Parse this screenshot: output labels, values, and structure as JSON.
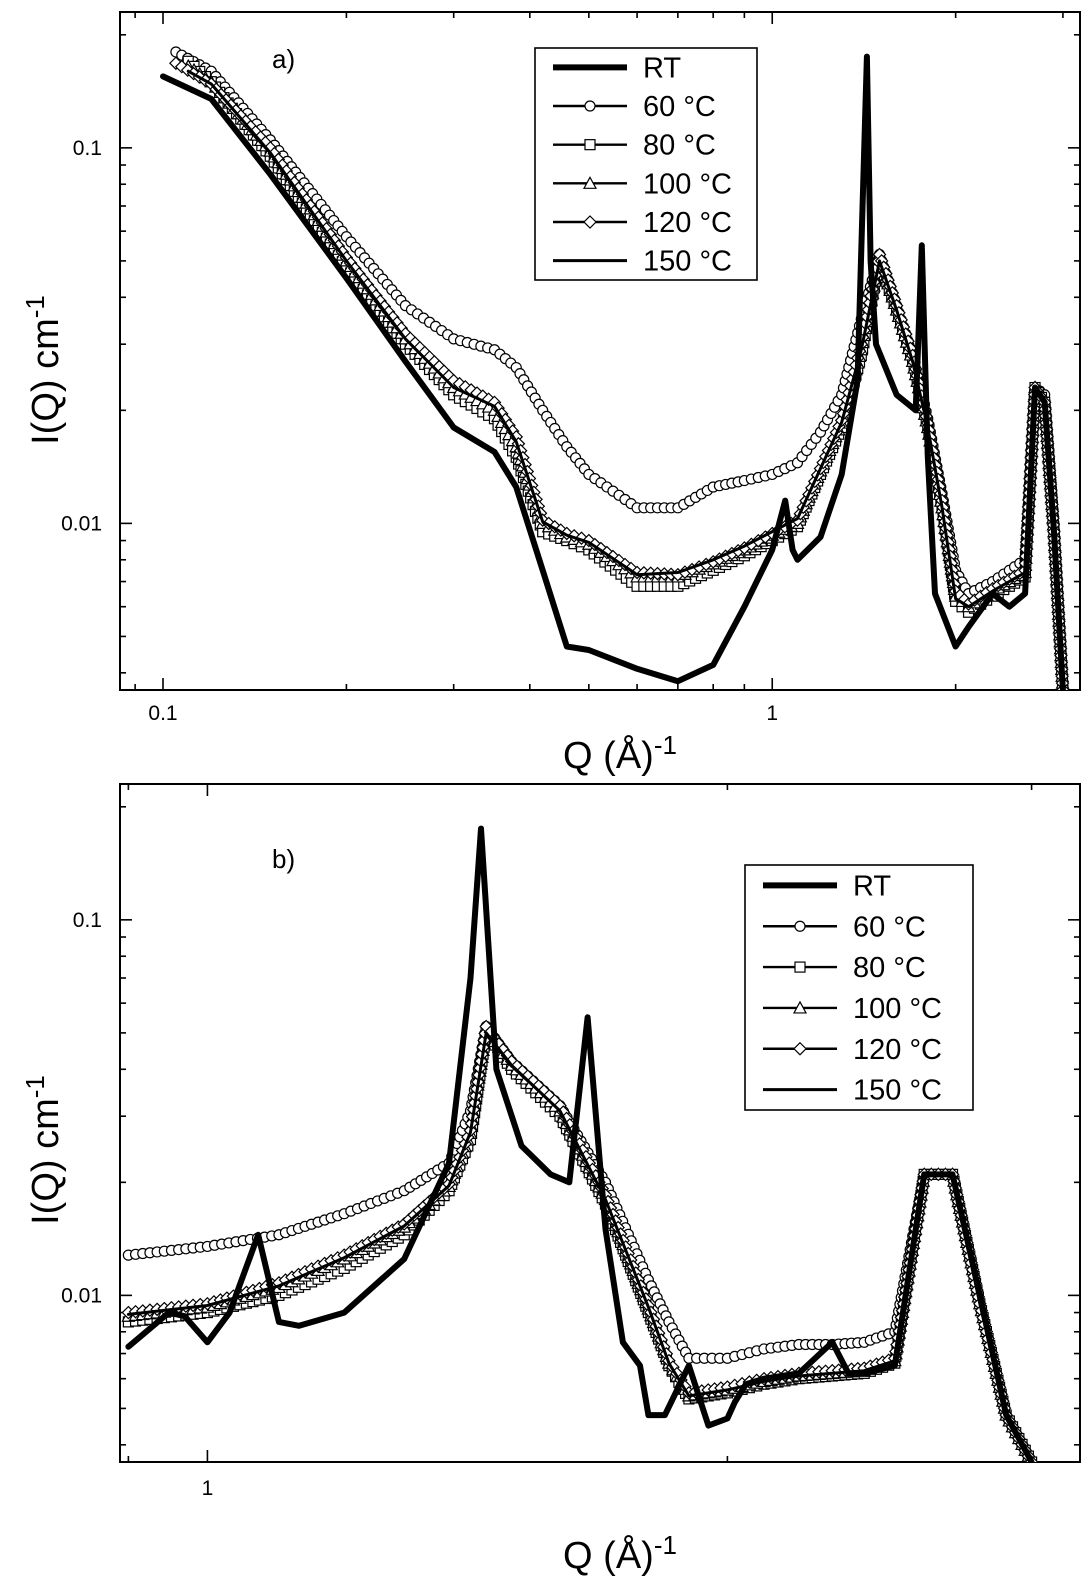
{
  "chart_data": [
    {
      "type": "line",
      "panel_label": "a)",
      "xlabel": "Q (Å)",
      "xlabel_sup": "-1",
      "ylabel": "I(Q) cm",
      "ylabel_sup": "-1",
      "xscale": "log",
      "yscale": "log",
      "xlim": [
        0.085,
        3.2
      ],
      "ylim": [
        0.0036,
        0.23
      ],
      "x_ticks": [
        {
          "value": 0.1,
          "label": "0.1"
        },
        {
          "value": 1,
          "label": "1"
        }
      ],
      "y_ticks": [
        {
          "value": 0.01,
          "label": "0.01"
        },
        {
          "value": 0.1,
          "label": "0.1"
        }
      ],
      "grid": false,
      "legend_position": "top-center",
      "legend": [
        "RT",
        "60 °C",
        "80 °C",
        "100 °C",
        "120 °C",
        "150 °C"
      ],
      "series": [
        {
          "name": "RT",
          "marker": "none",
          "x": [
            0.1,
            0.12,
            0.15,
            0.2,
            0.25,
            0.3,
            0.35,
            0.38,
            0.42,
            0.46,
            0.5,
            0.6,
            0.7,
            0.8,
            0.9,
            1.0,
            1.05,
            1.08,
            1.1,
            1.2,
            1.3,
            1.38,
            1.43,
            1.45,
            1.48,
            1.52,
            1.6,
            1.72,
            1.76,
            1.8,
            1.85,
            2.0,
            2.1,
            2.3,
            2.45,
            2.6,
            2.7,
            2.8,
            2.9,
            3.0
          ],
          "y": [
            0.155,
            0.135,
            0.085,
            0.045,
            0.027,
            0.018,
            0.0155,
            0.0125,
            0.0075,
            0.0047,
            0.0046,
            0.0041,
            0.0038,
            0.0042,
            0.006,
            0.0085,
            0.0115,
            0.0085,
            0.008,
            0.0092,
            0.0135,
            0.024,
            0.175,
            0.05,
            0.03,
            0.027,
            0.022,
            0.02,
            0.055,
            0.015,
            0.0065,
            0.0047,
            0.0053,
            0.0065,
            0.006,
            0.0065,
            0.023,
            0.021,
            0.0095,
            0.0036
          ]
        },
        {
          "name": "60 °C",
          "marker": "circle",
          "x": [
            0.105,
            0.12,
            0.15,
            0.2,
            0.25,
            0.3,
            0.35,
            0.38,
            0.42,
            0.46,
            0.5,
            0.6,
            0.7,
            0.8,
            0.9,
            1.0,
            1.1,
            1.2,
            1.3,
            1.4,
            1.5,
            1.6,
            1.7,
            1.8,
            1.9,
            2.0,
            2.1,
            2.3,
            2.45,
            2.6,
            2.7,
            2.8,
            2.9,
            3.0
          ],
          "y": [
            0.18,
            0.16,
            0.105,
            0.058,
            0.038,
            0.031,
            0.029,
            0.026,
            0.02,
            0.016,
            0.0135,
            0.011,
            0.011,
            0.0125,
            0.013,
            0.0135,
            0.0145,
            0.0175,
            0.022,
            0.035,
            0.052,
            0.038,
            0.028,
            0.019,
            0.012,
            0.0075,
            0.0065,
            0.007,
            0.0075,
            0.008,
            0.023,
            0.022,
            0.01,
            0.0036
          ]
        },
        {
          "name": "80 °C",
          "marker": "square",
          "x": [
            0.11,
            0.12,
            0.15,
            0.2,
            0.25,
            0.3,
            0.35,
            0.38,
            0.42,
            0.46,
            0.5,
            0.6,
            0.7,
            0.8,
            0.9,
            1.0,
            1.1,
            1.2,
            1.3,
            1.4,
            1.5,
            1.6,
            1.7,
            1.8,
            1.9,
            2.0,
            2.1,
            2.3,
            2.45,
            2.6,
            2.7,
            2.8,
            2.9,
            3.0
          ],
          "y": [
            0.17,
            0.15,
            0.095,
            0.048,
            0.03,
            0.022,
            0.019,
            0.015,
            0.0095,
            0.009,
            0.0085,
            0.0068,
            0.0068,
            0.0075,
            0.0082,
            0.009,
            0.0098,
            0.0135,
            0.018,
            0.028,
            0.05,
            0.037,
            0.027,
            0.018,
            0.011,
            0.0062,
            0.0058,
            0.0064,
            0.0068,
            0.0072,
            0.023,
            0.021,
            0.0095,
            0.0036
          ]
        },
        {
          "name": "100 °C",
          "marker": "triangle",
          "x": [
            0.11,
            0.12,
            0.15,
            0.2,
            0.25,
            0.3,
            0.35,
            0.38,
            0.42,
            0.46,
            0.5,
            0.6,
            0.7,
            0.8,
            0.9,
            1.0,
            1.1,
            1.2,
            1.3,
            1.4,
            1.5,
            1.6,
            1.7,
            1.8,
            1.9,
            2.0,
            2.1,
            2.3,
            2.45,
            2.6,
            2.7,
            2.8,
            2.9,
            3.0
          ],
          "y": [
            0.165,
            0.15,
            0.098,
            0.05,
            0.031,
            0.023,
            0.02,
            0.016,
            0.01,
            0.0092,
            0.0088,
            0.0072,
            0.0072,
            0.0078,
            0.0085,
            0.0093,
            0.01,
            0.0138,
            0.0185,
            0.029,
            0.051,
            0.037,
            0.027,
            0.018,
            0.011,
            0.0064,
            0.006,
            0.0066,
            0.007,
            0.0074,
            0.023,
            0.021,
            0.0095,
            0.0036
          ]
        },
        {
          "name": "120 °C",
          "marker": "diamond",
          "x": [
            0.105,
            0.12,
            0.15,
            0.2,
            0.25,
            0.3,
            0.35,
            0.38,
            0.42,
            0.46,
            0.5,
            0.6,
            0.7,
            0.8,
            0.9,
            1.0,
            1.1,
            1.2,
            1.3,
            1.4,
            1.5,
            1.6,
            1.7,
            1.8,
            1.9,
            2.0,
            2.1,
            2.3,
            2.45,
            2.6,
            2.7,
            2.8,
            2.9,
            3.0
          ],
          "y": [
            0.168,
            0.148,
            0.1,
            0.051,
            0.032,
            0.024,
            0.021,
            0.017,
            0.0102,
            0.0094,
            0.009,
            0.0074,
            0.0073,
            0.0079,
            0.0086,
            0.0094,
            0.0102,
            0.014,
            0.0188,
            0.03,
            0.052,
            0.038,
            0.028,
            0.0185,
            0.0115,
            0.0066,
            0.0061,
            0.0067,
            0.0071,
            0.0075,
            0.023,
            0.021,
            0.0095,
            0.0036
          ]
        },
        {
          "name": "150 °C",
          "marker": "none",
          "x": [
            0.11,
            0.12,
            0.15,
            0.2,
            0.25,
            0.3,
            0.35,
            0.38,
            0.42,
            0.46,
            0.5,
            0.6,
            0.7,
            0.8,
            0.9,
            1.0,
            1.1,
            1.2,
            1.3,
            1.4,
            1.5,
            1.6,
            1.7,
            1.8,
            1.9,
            2.0,
            2.1,
            2.3,
            2.45,
            2.6,
            2.7,
            2.8,
            2.9,
            3.0
          ],
          "y": [
            0.16,
            0.148,
            0.097,
            0.05,
            0.031,
            0.023,
            0.0205,
            0.0165,
            0.0101,
            0.0093,
            0.0089,
            0.0073,
            0.0074,
            0.008,
            0.0087,
            0.0095,
            0.0103,
            0.014,
            0.0186,
            0.029,
            0.05,
            0.037,
            0.027,
            0.018,
            0.011,
            0.0063,
            0.006,
            0.0066,
            0.007,
            0.0074,
            0.023,
            0.021,
            0.0095,
            0.0036
          ]
        }
      ]
    },
    {
      "type": "line",
      "panel_label": "b)",
      "xlabel": "Q (Å)",
      "xlabel_sup": "-1",
      "ylabel": "I(Q) cm",
      "ylabel_sup": "-1",
      "xscale": "log",
      "yscale": "log",
      "xlim": [
        0.89,
        3.2
      ],
      "ylim": [
        0.0036,
        0.23
      ],
      "x_ticks": [
        {
          "value": 1,
          "label": "1"
        },
        {
          "value": 2,
          "label": ""
        }
      ],
      "y_ticks": [
        {
          "value": 0.01,
          "label": "0.01"
        },
        {
          "value": 0.1,
          "label": "0.1"
        }
      ],
      "grid": false,
      "legend_position": "right",
      "legend": [
        "RT",
        "60 °C",
        "80 °C",
        "100 °C",
        "120 °C",
        "150 °C"
      ],
      "series": [
        {
          "name": "RT",
          "marker": "none",
          "x": [
            0.9,
            0.95,
            0.97,
            1.0,
            1.03,
            1.07,
            1.1,
            1.13,
            1.2,
            1.3,
            1.38,
            1.42,
            1.44,
            1.47,
            1.52,
            1.58,
            1.62,
            1.66,
            1.7,
            1.74,
            1.78,
            1.8,
            1.84,
            1.9,
            1.95,
            2.0,
            2.02,
            2.05,
            2.1,
            2.2,
            2.3,
            2.35,
            2.4,
            2.5,
            2.6,
            2.7,
            2.8,
            2.9,
            3.0
          ],
          "y": [
            0.0073,
            0.009,
            0.0088,
            0.0075,
            0.009,
            0.0145,
            0.0085,
            0.0083,
            0.009,
            0.0125,
            0.0225,
            0.07,
            0.175,
            0.04,
            0.025,
            0.021,
            0.02,
            0.055,
            0.015,
            0.0075,
            0.0065,
            0.0048,
            0.0048,
            0.0065,
            0.0045,
            0.0047,
            0.0052,
            0.0058,
            0.006,
            0.0062,
            0.0075,
            0.0062,
            0.0062,
            0.0065,
            0.021,
            0.021,
            0.01,
            0.0048,
            0.0036
          ]
        },
        {
          "name": "60 °C",
          "marker": "circle",
          "x": [
            0.9,
            1.0,
            1.1,
            1.2,
            1.3,
            1.38,
            1.42,
            1.45,
            1.5,
            1.6,
            1.7,
            1.8,
            1.85,
            1.9,
            2.0,
            2.1,
            2.2,
            2.3,
            2.4,
            2.5,
            2.6,
            2.7,
            2.8,
            2.9,
            3.0
          ],
          "y": [
            0.0128,
            0.0135,
            0.0145,
            0.0165,
            0.019,
            0.0225,
            0.031,
            0.052,
            0.042,
            0.032,
            0.02,
            0.011,
            0.0085,
            0.0068,
            0.0068,
            0.0072,
            0.0074,
            0.0074,
            0.0075,
            0.008,
            0.021,
            0.021,
            0.0095,
            0.0048,
            0.0036
          ]
        },
        {
          "name": "80 °C",
          "marker": "square",
          "x": [
            0.9,
            1.0,
            1.1,
            1.2,
            1.3,
            1.38,
            1.42,
            1.45,
            1.5,
            1.6,
            1.7,
            1.8,
            1.85,
            1.9,
            2.0,
            2.1,
            2.2,
            2.3,
            2.4,
            2.5,
            2.6,
            2.7,
            2.8,
            2.9,
            3.0
          ],
          "y": [
            0.0085,
            0.009,
            0.01,
            0.0118,
            0.0145,
            0.019,
            0.026,
            0.05,
            0.04,
            0.03,
            0.0175,
            0.009,
            0.0065,
            0.0053,
            0.0055,
            0.0058,
            0.006,
            0.0061,
            0.0062,
            0.0066,
            0.021,
            0.021,
            0.0095,
            0.0048,
            0.0036
          ]
        },
        {
          "name": "100 °C",
          "marker": "triangle",
          "x": [
            0.9,
            1.0,
            1.1,
            1.2,
            1.3,
            1.38,
            1.42,
            1.45,
            1.5,
            1.6,
            1.7,
            1.8,
            1.85,
            1.9,
            2.0,
            2.1,
            2.2,
            2.3,
            2.4,
            2.5,
            2.6,
            2.7,
            2.8,
            2.9,
            3.0
          ],
          "y": [
            0.0088,
            0.0093,
            0.0105,
            0.0125,
            0.0152,
            0.0195,
            0.027,
            0.051,
            0.041,
            0.031,
            0.018,
            0.0092,
            0.0066,
            0.0054,
            0.0056,
            0.0059,
            0.0061,
            0.0062,
            0.0063,
            0.0067,
            0.021,
            0.021,
            0.0095,
            0.0048,
            0.0036
          ]
        },
        {
          "name": "120 °C",
          "marker": "diamond",
          "x": [
            0.9,
            1.0,
            1.1,
            1.2,
            1.3,
            1.38,
            1.42,
            1.45,
            1.5,
            1.6,
            1.7,
            1.8,
            1.85,
            1.9,
            2.0,
            2.1,
            2.2,
            2.3,
            2.4,
            2.5,
            2.6,
            2.7,
            2.8,
            2.9,
            3.0
          ],
          "y": [
            0.009,
            0.0095,
            0.0108,
            0.0128,
            0.0155,
            0.0198,
            0.0275,
            0.052,
            0.042,
            0.032,
            0.0185,
            0.0094,
            0.0067,
            0.0055,
            0.0057,
            0.006,
            0.0062,
            0.0063,
            0.0064,
            0.0068,
            0.021,
            0.021,
            0.0095,
            0.0048,
            0.0036
          ]
        },
        {
          "name": "150 °C",
          "marker": "none",
          "x": [
            0.9,
            1.0,
            1.1,
            1.2,
            1.3,
            1.38,
            1.42,
            1.45,
            1.5,
            1.6,
            1.7,
            1.8,
            1.85,
            1.9,
            2.0,
            2.1,
            2.2,
            2.3,
            2.4,
            2.5,
            2.6,
            2.7,
            2.8,
            2.9,
            3.0
          ],
          "y": [
            0.0089,
            0.0094,
            0.0106,
            0.0126,
            0.0153,
            0.0196,
            0.0272,
            0.05,
            0.041,
            0.031,
            0.018,
            0.0093,
            0.0066,
            0.0054,
            0.0056,
            0.0059,
            0.0061,
            0.0062,
            0.0063,
            0.0067,
            0.021,
            0.021,
            0.0095,
            0.0048,
            0.0036
          ]
        }
      ]
    }
  ]
}
